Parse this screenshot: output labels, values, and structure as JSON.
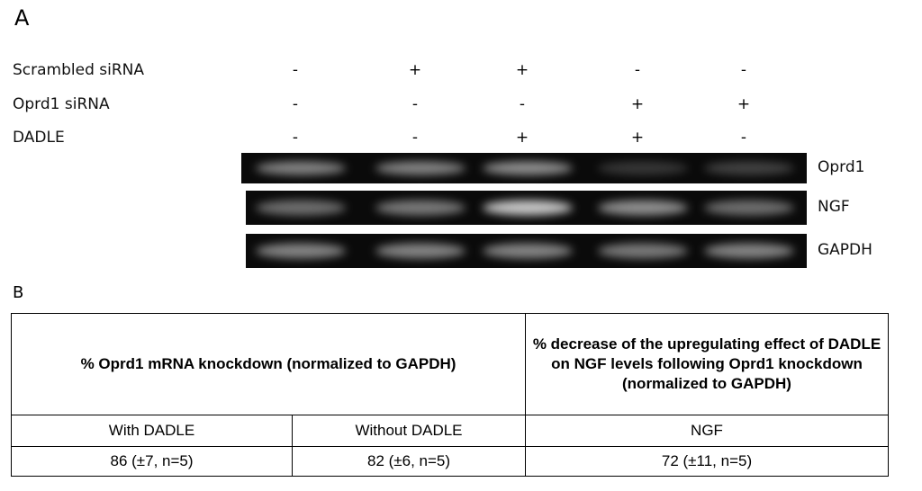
{
  "panel_a": {
    "label": "A",
    "conditions": [
      {
        "label": "Scrambled siRNA",
        "signs": [
          "-",
          "+",
          "+",
          "-",
          "-"
        ]
      },
      {
        "label": "Oprd1 siRNA",
        "signs": [
          "-",
          "-",
          "-",
          "+",
          "+"
        ]
      },
      {
        "label": "DADLE",
        "signs": [
          "-",
          "-",
          "+",
          "+",
          "-"
        ]
      }
    ],
    "bands": [
      "Oprd1",
      "NGF",
      "GAPDH"
    ]
  },
  "panel_b": {
    "label": "B",
    "table": {
      "header": [
        "% Oprd1 mRNA knockdown (normalized to GAPDH)",
        "% decrease of the upregulating effect of DADLE on NGF levels following Oprd1 knockdown (normalized to GAPDH)"
      ],
      "subheader": [
        "With DADLE",
        "Without DADLE",
        "NGF"
      ],
      "rows": [
        [
          "86 (±7, n=5)",
          "82 (±6, n=5)",
          "72 (±11, n=5)"
        ]
      ]
    }
  }
}
